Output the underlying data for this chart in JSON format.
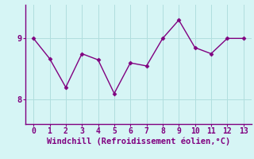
{
  "x": [
    0,
    1,
    2,
    3,
    4,
    5,
    6,
    7,
    8,
    9,
    10,
    11,
    12,
    13
  ],
  "y": [
    9.0,
    8.67,
    8.2,
    8.75,
    8.65,
    8.1,
    8.6,
    8.55,
    9.0,
    9.3,
    8.85,
    8.75,
    9.0,
    9.0
  ],
  "line_color": "#800080",
  "marker": "D",
  "marker_size": 2.5,
  "line_width": 1.0,
  "xlabel": "Windchill (Refroidissement éolien,°C)",
  "xlabel_color": "#800080",
  "xlabel_fontsize": 7.5,
  "bg_color": "#d6f5f5",
  "grid_color": "#b0dede",
  "tick_color": "#800080",
  "spine_color": "#800080",
  "ytick_labels": [
    "8",
    "9"
  ],
  "yticks": [
    8,
    9
  ],
  "ylim": [
    7.6,
    9.55
  ],
  "xlim": [
    -0.5,
    13.5
  ],
  "xticks": [
    0,
    1,
    2,
    3,
    4,
    5,
    6,
    7,
    8,
    9,
    10,
    11,
    12,
    13
  ]
}
